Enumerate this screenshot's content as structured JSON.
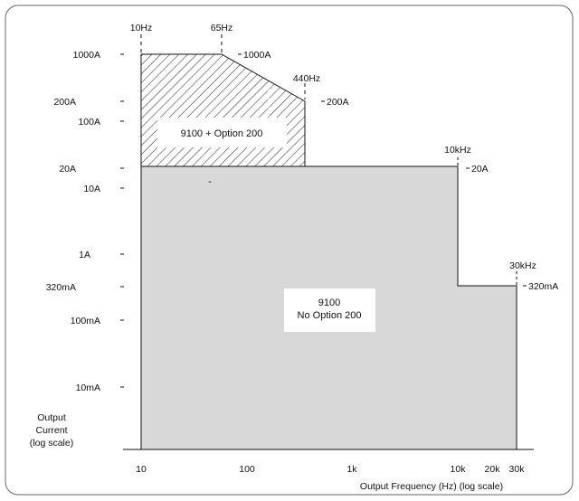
{
  "colors": {
    "frame": "#666666",
    "fill_standard": "#d8d8d8",
    "outline": "#111111",
    "hatch": "#222222",
    "label_box": "#ffffff"
  },
  "axes": {
    "x_title": "Output Frequency (Hz) (log scale)",
    "y_title": [
      "Output",
      "Current",
      "(log scale)"
    ],
    "x_ticks": [
      "10",
      "100",
      "1k",
      "10k",
      "20k",
      "30k"
    ],
    "y_ticks": [
      "1000A",
      "200A",
      "100A",
      "20A",
      "10A",
      "1A",
      "320mA",
      "100mA",
      "10mA"
    ]
  },
  "regions": {
    "option": "9100 + Option 200",
    "standard": [
      "9100",
      "No Option 200"
    ]
  },
  "corner_labels": {
    "f10": "10Hz",
    "f65": "65Hz",
    "f440": "440Hz",
    "f10k": "10kHz",
    "f30k": "30kHz",
    "i1000": "1000A",
    "i200": "200A",
    "i20": "20A",
    "i320m": "320mA"
  },
  "stray_mark": "-"
}
